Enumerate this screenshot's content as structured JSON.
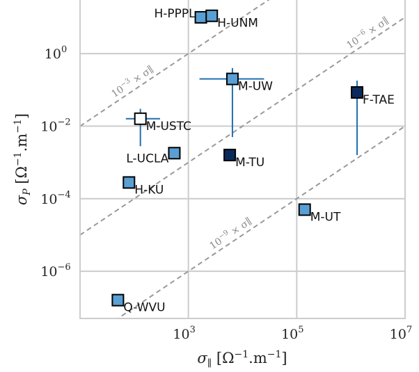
{
  "chart_data": {
    "type": "scatter",
    "title": "",
    "xlabel": "σ_∥ [Ω^−1.m^−1]",
    "ylabel": "σ_P [Ω^−1.m^−1]",
    "xscale": "log",
    "yscale": "log",
    "xlim": [
      10.0,
      10000000.0
    ],
    "ylim": [
      5e-08,
      30.0
    ],
    "grid": true,
    "x_ticks": [
      {
        "base": "10",
        "exp": "3",
        "value": 1000.0
      },
      {
        "base": "10",
        "exp": "5",
        "value": 100000.0
      },
      {
        "base": "10",
        "exp": "7",
        "value": 10000000.0
      }
    ],
    "y_ticks": [
      {
        "base": "10",
        "exp": "0",
        "value": 1.0
      },
      {
        "base": "10",
        "exp": "−2",
        "value": 0.01
      },
      {
        "base": "10",
        "exp": "−4",
        "value": 0.0001
      },
      {
        "base": "10",
        "exp": "−6",
        "value": 1e-06
      }
    ],
    "reference_lines": [
      {
        "label_base": "10",
        "label_exp": "−3",
        "label_suffix": " × σ∥",
        "factor": 0.001
      },
      {
        "label_base": "10",
        "label_exp": "−6",
        "label_suffix": " × σ∥",
        "factor": 1e-06
      },
      {
        "label_base": "10",
        "label_exp": "−9",
        "label_suffix": " × σ∥",
        "factor": 1e-09
      }
    ],
    "points": [
      {
        "label": "H-PPPL",
        "x": 1700,
        "y": 10,
        "color": "#5a9fd4",
        "label_pos": "left"
      },
      {
        "label": "H-UNM",
        "x": 2700,
        "y": 11,
        "color": "#5a9fd4",
        "label_pos": "right"
      },
      {
        "label": "M-UW",
        "x": 6500,
        "y": 0.2,
        "color": "#5a9fd4",
        "label_pos": "right",
        "xerr": [
          1600,
          25000
        ],
        "yerr": [
          0.005,
          0.4
        ]
      },
      {
        "label": "F-TAE",
        "x": 1300000.0,
        "y": 0.085,
        "color": "#0b2a5c",
        "label_pos": "right",
        "yerr": [
          0.0016,
          0.18
        ]
      },
      {
        "label": "M-USTC",
        "x": 130,
        "y": 0.016,
        "color": "#ffffff",
        "label_pos": "right",
        "xerr": [
          70,
          300
        ],
        "yerr": [
          0.0028,
          0.03
        ]
      },
      {
        "label": "L-UCLA",
        "x": 550,
        "y": 0.0018,
        "color": "#5a9fd4",
        "label_pos": "left"
      },
      {
        "label": "M-TU",
        "x": 5800,
        "y": 0.0016,
        "color": "#0b2a5c",
        "label_pos": "right"
      },
      {
        "label": "H-KU",
        "x": 80,
        "y": 0.00028,
        "color": "#5a9fd4",
        "label_pos": "right"
      },
      {
        "label": "M-UT",
        "x": 140000.0,
        "y": 5e-05,
        "color": "#5a9fd4",
        "label_pos": "right"
      },
      {
        "label": "Q-WVU",
        "x": 50,
        "y": 1.6e-07,
        "color": "#5a9fd4",
        "label_pos": "right"
      }
    ]
  }
}
